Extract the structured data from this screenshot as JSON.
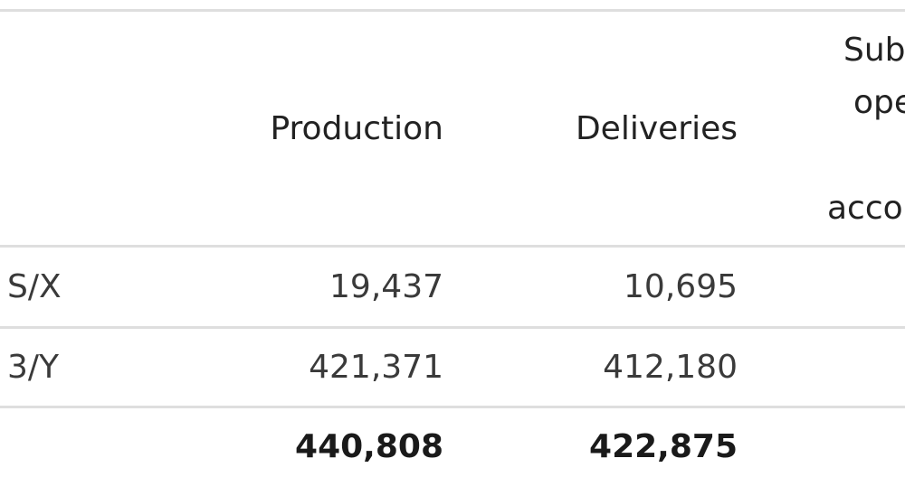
{
  "table": {
    "headers": {
      "production": "Production",
      "deliveries": "Deliveries",
      "third_col_line1": "Sub",
      "third_col_line2": "ope",
      "third_col_line3": "acco"
    },
    "rows": [
      {
        "label": "S/X",
        "production": "19,437",
        "deliveries": "10,695"
      },
      {
        "label": "3/Y",
        "production": "421,371",
        "deliveries": "412,180"
      }
    ],
    "total": {
      "label": "",
      "production": "440,808",
      "deliveries": "422,875"
    }
  }
}
